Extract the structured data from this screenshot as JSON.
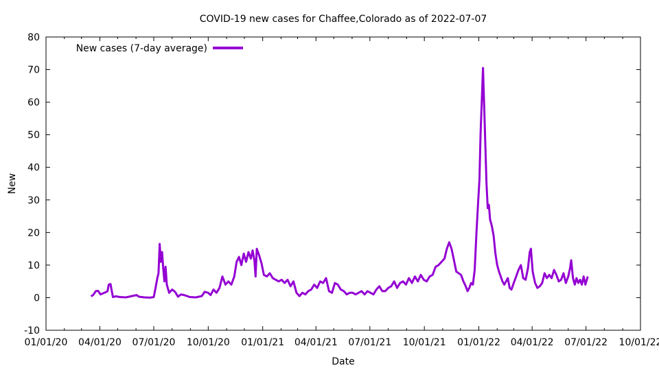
{
  "chart_data": {
    "type": "line",
    "title": "COVID-19 new cases for Chaffee,Colorado as of 2022-07-07",
    "xlabel": "Date",
    "ylabel": "New",
    "x_ticks": [
      "01/01/20",
      "04/01/20",
      "07/01/20",
      "10/01/20",
      "01/01/21",
      "04/01/21",
      "07/01/21",
      "10/01/21",
      "01/01/22",
      "04/01/22",
      "07/01/22",
      "10/01/22"
    ],
    "x_tick_dates": [
      "2020-01-01",
      "2020-04-01",
      "2020-07-01",
      "2020-10-01",
      "2021-01-01",
      "2021-04-01",
      "2021-07-01",
      "2021-10-01",
      "2022-01-01",
      "2022-04-01",
      "2022-07-01",
      "2022-10-01"
    ],
    "xlim": [
      "2020-01-01",
      "2022-10-01"
    ],
    "ylim": [
      -10,
      80
    ],
    "y_ticks": [
      -10,
      0,
      10,
      20,
      30,
      40,
      50,
      60,
      70,
      80
    ],
    "grid": false,
    "legend_position": "top-left",
    "series": [
      {
        "name": "New cases (7-day average)",
        "color": "#9400d3",
        "points": [
          [
            "2020-03-17",
            0.4
          ],
          [
            "2020-03-21",
            0.9
          ],
          [
            "2020-03-25",
            2.0
          ],
          [
            "2020-03-29",
            2.1
          ],
          [
            "2020-04-02",
            1.0
          ],
          [
            "2020-04-06",
            1.3
          ],
          [
            "2020-04-10",
            1.6
          ],
          [
            "2020-04-14",
            2.0
          ],
          [
            "2020-04-16",
            4.0
          ],
          [
            "2020-04-19",
            4.2
          ],
          [
            "2020-04-21",
            2.2
          ],
          [
            "2020-04-23",
            0.2
          ],
          [
            "2020-04-28",
            0.4
          ],
          [
            "2020-05-05",
            0.2
          ],
          [
            "2020-05-15",
            0.1
          ],
          [
            "2020-05-25",
            0.5
          ],
          [
            "2020-06-02",
            0.8
          ],
          [
            "2020-06-06",
            0.3
          ],
          [
            "2020-06-15",
            0.1
          ],
          [
            "2020-06-25",
            0.0
          ],
          [
            "2020-07-01",
            0.2
          ],
          [
            "2020-07-04",
            3.0
          ],
          [
            "2020-07-07",
            6.0
          ],
          [
            "2020-07-09",
            7.5
          ],
          [
            "2020-07-11",
            16.5
          ],
          [
            "2020-07-13",
            11.0
          ],
          [
            "2020-07-15",
            14.0
          ],
          [
            "2020-07-17",
            9.0
          ],
          [
            "2020-07-19",
            5.0
          ],
          [
            "2020-07-21",
            9.5
          ],
          [
            "2020-07-23",
            4.0
          ],
          [
            "2020-07-27",
            1.5
          ],
          [
            "2020-08-01",
            2.5
          ],
          [
            "2020-08-06",
            1.8
          ],
          [
            "2020-08-11",
            0.3
          ],
          [
            "2020-08-16",
            1.0
          ],
          [
            "2020-08-21",
            0.8
          ],
          [
            "2020-08-31",
            0.2
          ],
          [
            "2020-09-10",
            0.1
          ],
          [
            "2020-09-20",
            0.5
          ],
          [
            "2020-09-25",
            1.8
          ],
          [
            "2020-10-01",
            1.5
          ],
          [
            "2020-10-05",
            0.8
          ],
          [
            "2020-10-10",
            2.5
          ],
          [
            "2020-10-15",
            1.5
          ],
          [
            "2020-10-20",
            3.0
          ],
          [
            "2020-10-25",
            6.5
          ],
          [
            "2020-10-30",
            4.0
          ],
          [
            "2020-11-04",
            5.0
          ],
          [
            "2020-11-09",
            4.0
          ],
          [
            "2020-11-14",
            6.5
          ],
          [
            "2020-11-18",
            11.0
          ],
          [
            "2020-11-22",
            12.5
          ],
          [
            "2020-11-26",
            10.0
          ],
          [
            "2020-11-30",
            13.5
          ],
          [
            "2020-12-04",
            11.0
          ],
          [
            "2020-12-08",
            14.0
          ],
          [
            "2020-12-12",
            12.0
          ],
          [
            "2020-12-15",
            14.5
          ],
          [
            "2020-12-18",
            11.5
          ],
          [
            "2020-12-20",
            6.5
          ],
          [
            "2020-12-22",
            15.0
          ],
          [
            "2020-12-26",
            13.0
          ],
          [
            "2020-12-30",
            10.5
          ],
          [
            "2021-01-03",
            7.0
          ],
          [
            "2021-01-08",
            6.5
          ],
          [
            "2021-01-13",
            7.5
          ],
          [
            "2021-01-18",
            6.0
          ],
          [
            "2021-01-23",
            5.5
          ],
          [
            "2021-01-28",
            5.0
          ],
          [
            "2021-02-02",
            5.5
          ],
          [
            "2021-02-07",
            4.5
          ],
          [
            "2021-02-12",
            5.5
          ],
          [
            "2021-02-17",
            3.5
          ],
          [
            "2021-02-22",
            5.0
          ],
          [
            "2021-02-27",
            1.5
          ],
          [
            "2021-03-04",
            0.5
          ],
          [
            "2021-03-09",
            1.5
          ],
          [
            "2021-03-14",
            1.0
          ],
          [
            "2021-03-19",
            2.0
          ],
          [
            "2021-03-24",
            2.5
          ],
          [
            "2021-03-29",
            4.0
          ],
          [
            "2021-04-03",
            3.0
          ],
          [
            "2021-04-08",
            5.0
          ],
          [
            "2021-04-13",
            4.5
          ],
          [
            "2021-04-18",
            6.0
          ],
          [
            "2021-04-23",
            2.0
          ],
          [
            "2021-04-28",
            1.5
          ],
          [
            "2021-05-03",
            4.5
          ],
          [
            "2021-05-08",
            4.0
          ],
          [
            "2021-05-13",
            2.5
          ],
          [
            "2021-05-18",
            2.0
          ],
          [
            "2021-05-23",
            1.0
          ],
          [
            "2021-05-28",
            1.5
          ],
          [
            "2021-06-02",
            1.5
          ],
          [
            "2021-06-07",
            1.0
          ],
          [
            "2021-06-12",
            1.5
          ],
          [
            "2021-06-17",
            2.0
          ],
          [
            "2021-06-22",
            1.0
          ],
          [
            "2021-06-27",
            2.0
          ],
          [
            "2021-07-02",
            1.5
          ],
          [
            "2021-07-07",
            1.0
          ],
          [
            "2021-07-12",
            2.5
          ],
          [
            "2021-07-17",
            3.5
          ],
          [
            "2021-07-22",
            2.0
          ],
          [
            "2021-07-27",
            2.0
          ],
          [
            "2021-08-01",
            3.0
          ],
          [
            "2021-08-06",
            3.5
          ],
          [
            "2021-08-11",
            5.0
          ],
          [
            "2021-08-16",
            3.0
          ],
          [
            "2021-08-21",
            4.5
          ],
          [
            "2021-08-26",
            5.0
          ],
          [
            "2021-08-31",
            4.0
          ],
          [
            "2021-09-05",
            6.0
          ],
          [
            "2021-09-10",
            4.5
          ],
          [
            "2021-09-15",
            6.5
          ],
          [
            "2021-09-20",
            5.0
          ],
          [
            "2021-09-25",
            7.0
          ],
          [
            "2021-09-30",
            5.5
          ],
          [
            "2021-10-05",
            5.0
          ],
          [
            "2021-10-10",
            6.5
          ],
          [
            "2021-10-15",
            7.0
          ],
          [
            "2021-10-20",
            9.5
          ],
          [
            "2021-10-25",
            10.0
          ],
          [
            "2021-10-30",
            11.0
          ],
          [
            "2021-11-04",
            12.0
          ],
          [
            "2021-11-08",
            15.0
          ],
          [
            "2021-11-12",
            17.0
          ],
          [
            "2021-11-16",
            15.0
          ],
          [
            "2021-11-20",
            11.5
          ],
          [
            "2021-11-24",
            8.0
          ],
          [
            "2021-11-28",
            7.5
          ],
          [
            "2021-12-02",
            7.0
          ],
          [
            "2021-12-06",
            5.0
          ],
          [
            "2021-12-10",
            3.5
          ],
          [
            "2021-12-13",
            2.0
          ],
          [
            "2021-12-16",
            3.0
          ],
          [
            "2021-12-19",
            4.5
          ],
          [
            "2021-12-22",
            4.0
          ],
          [
            "2021-12-25",
            8.5
          ],
          [
            "2021-12-28",
            20.0
          ],
          [
            "2021-12-31",
            30.0
          ],
          [
            "2022-01-02",
            36.0
          ],
          [
            "2022-01-04",
            50.5
          ],
          [
            "2022-01-06",
            60.0
          ],
          [
            "2022-01-08",
            70.5
          ],
          [
            "2022-01-10",
            59.0
          ],
          [
            "2022-01-12",
            47.0
          ],
          [
            "2022-01-14",
            35.0
          ],
          [
            "2022-01-16",
            27.5
          ],
          [
            "2022-01-18",
            28.5
          ],
          [
            "2022-01-20",
            24.0
          ],
          [
            "2022-01-23",
            22.0
          ],
          [
            "2022-01-26",
            19.0
          ],
          [
            "2022-01-29",
            13.5
          ],
          [
            "2022-02-01",
            10.0
          ],
          [
            "2022-02-04",
            8.0
          ],
          [
            "2022-02-07",
            6.5
          ],
          [
            "2022-02-10",
            5.0
          ],
          [
            "2022-02-13",
            4.0
          ],
          [
            "2022-02-16",
            5.0
          ],
          [
            "2022-02-19",
            6.0
          ],
          [
            "2022-02-22",
            3.0
          ],
          [
            "2022-02-25",
            2.5
          ],
          [
            "2022-03-01",
            4.5
          ],
          [
            "2022-03-05",
            6.5
          ],
          [
            "2022-03-09",
            8.5
          ],
          [
            "2022-03-13",
            10.0
          ],
          [
            "2022-03-17",
            6.0
          ],
          [
            "2022-03-21",
            5.5
          ],
          [
            "2022-03-25",
            9.0
          ],
          [
            "2022-03-28",
            14.0
          ],
          [
            "2022-03-30",
            15.0
          ],
          [
            "2022-04-02",
            8.0
          ],
          [
            "2022-04-06",
            4.5
          ],
          [
            "2022-04-10",
            3.0
          ],
          [
            "2022-04-14",
            3.5
          ],
          [
            "2022-04-18",
            4.5
          ],
          [
            "2022-04-22",
            7.5
          ],
          [
            "2022-04-26",
            6.0
          ],
          [
            "2022-04-30",
            7.0
          ],
          [
            "2022-05-04",
            6.0
          ],
          [
            "2022-05-08",
            8.5
          ],
          [
            "2022-05-12",
            7.0
          ],
          [
            "2022-05-16",
            5.0
          ],
          [
            "2022-05-20",
            5.5
          ],
          [
            "2022-05-24",
            7.5
          ],
          [
            "2022-05-28",
            4.5
          ],
          [
            "2022-06-01",
            6.5
          ],
          [
            "2022-06-04",
            9.0
          ],
          [
            "2022-06-06",
            11.5
          ],
          [
            "2022-06-09",
            6.0
          ],
          [
            "2022-06-12",
            4.0
          ],
          [
            "2022-06-15",
            6.0
          ],
          [
            "2022-06-18",
            4.5
          ],
          [
            "2022-06-21",
            5.5
          ],
          [
            "2022-06-24",
            4.0
          ],
          [
            "2022-06-27",
            6.5
          ],
          [
            "2022-06-30",
            4.0
          ],
          [
            "2022-07-04",
            6.5
          ]
        ]
      }
    ]
  }
}
